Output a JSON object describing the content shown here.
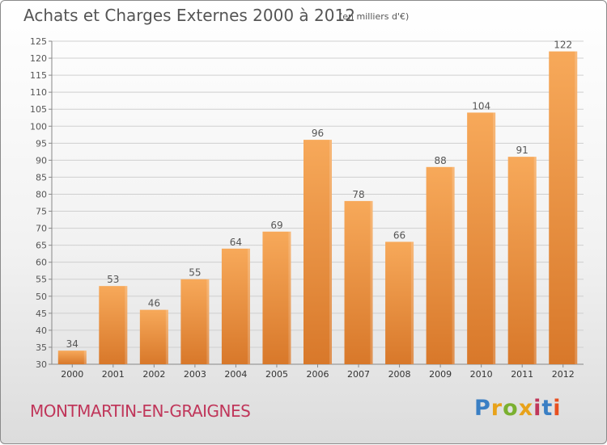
{
  "header": {
    "title": "Achats et Charges Externes 2000 à 2012",
    "subtitle": "(en milliers d'€)"
  },
  "footer": {
    "commune": "MONTMARTIN-EN-GRAIGNES",
    "logo_text": "Proxiti",
    "logo_letter_colors": [
      "#3a7fc4",
      "#e8a21a",
      "#7ab030",
      "#e8a21a",
      "#c0365a",
      "#3a7fc4",
      "#e85020"
    ]
  },
  "colors": {
    "bar_light": "#f7a95a",
    "bar_dark": "#d8782a",
    "grid": "#cfcfcf",
    "text": "#555555"
  },
  "chart_data": {
    "type": "bar",
    "title": "Achats et Charges Externes 2000 à 2012",
    "subtitle": "(en milliers d'€)",
    "categories": [
      "2000",
      "2001",
      "2002",
      "2003",
      "2004",
      "2005",
      "2006",
      "2007",
      "2008",
      "2009",
      "2010",
      "2011",
      "2012"
    ],
    "values": [
      34,
      53,
      46,
      55,
      64,
      69,
      96,
      78,
      66,
      88,
      104,
      91,
      122
    ],
    "ylim": [
      30,
      125
    ],
    "yticks": [
      30,
      35,
      40,
      45,
      50,
      55,
      60,
      65,
      70,
      75,
      80,
      85,
      90,
      95,
      100,
      105,
      110,
      115,
      120,
      125
    ],
    "grid": true,
    "data_labels": true
  }
}
